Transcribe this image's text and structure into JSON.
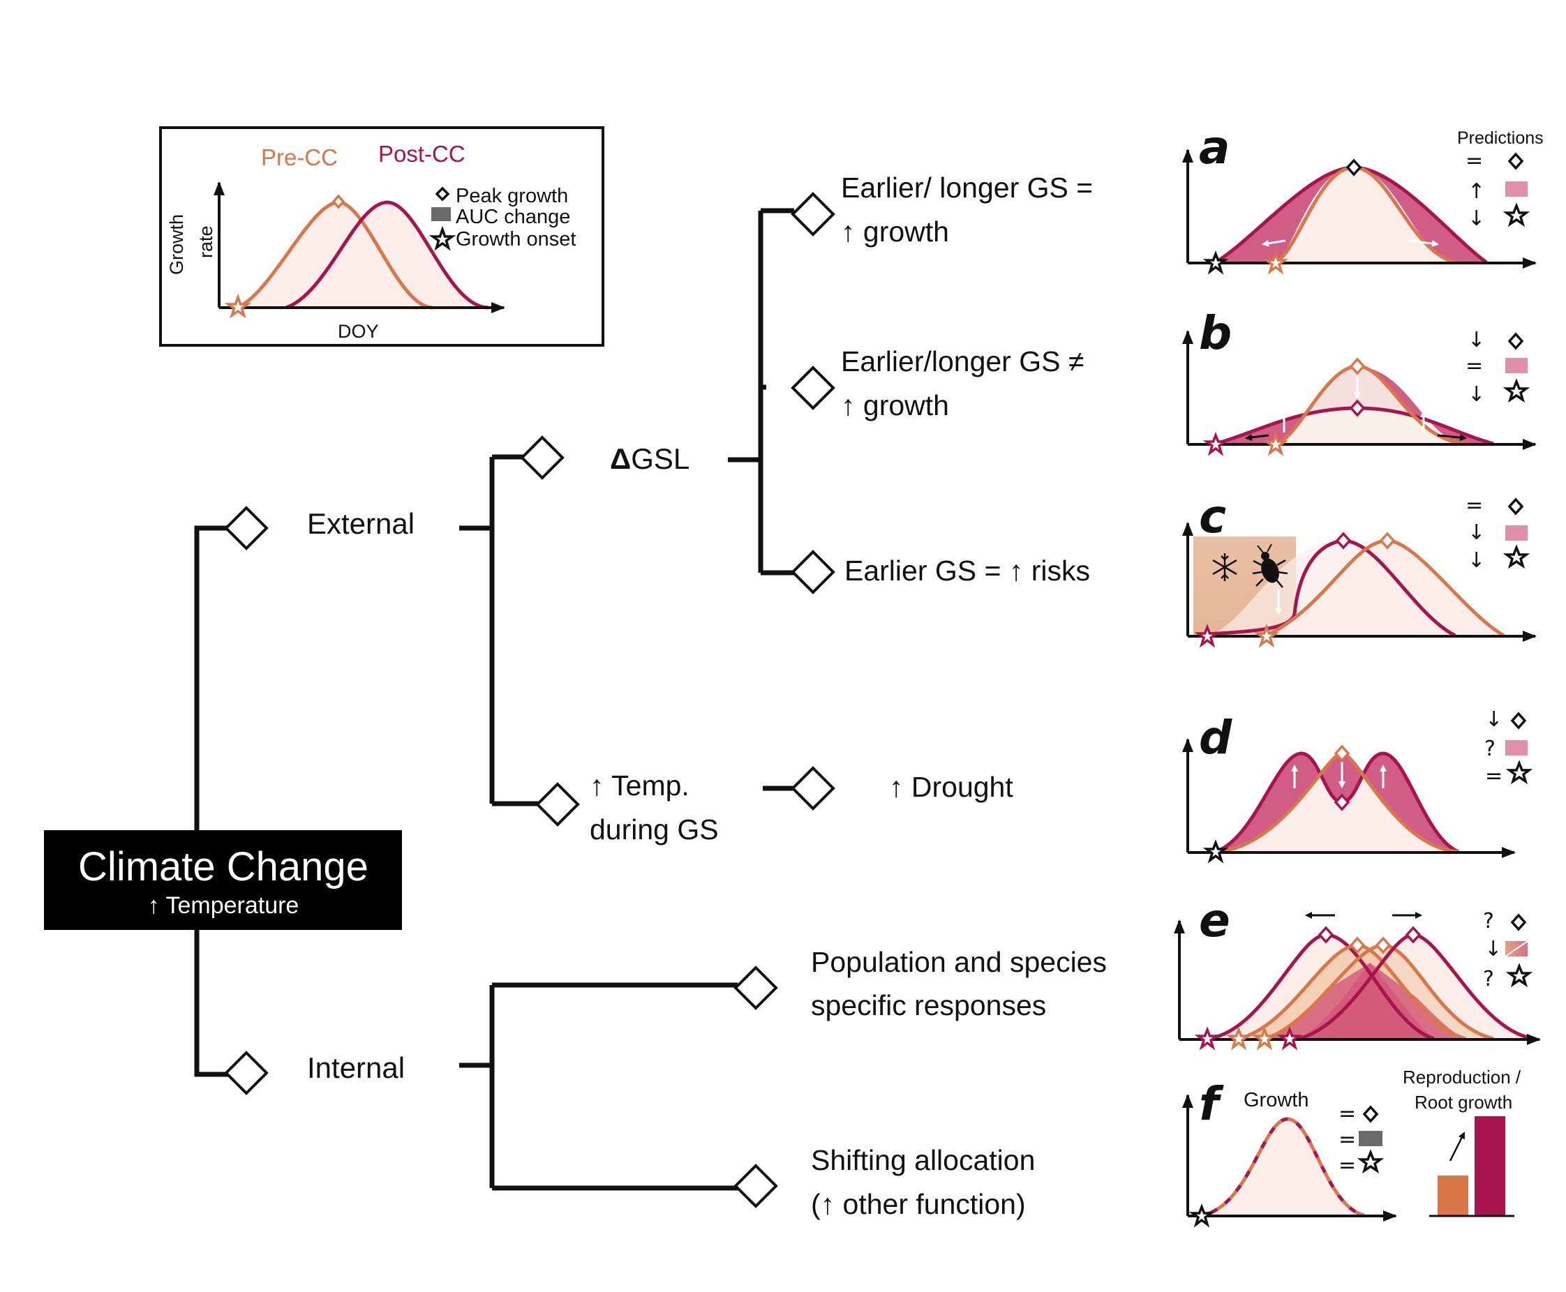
{
  "legend": {
    "pre_label": "Pre-CC",
    "post_label": "Post-CC",
    "y_label_1": "Growth",
    "y_label_2": "rate",
    "x_label": "DOY",
    "items": [
      "Peak growth",
      "AUC change",
      "Growth onset"
    ]
  },
  "root": {
    "title": "Climate Change",
    "subtitle": "↑ Temperature"
  },
  "branches": {
    "external": "External",
    "internal": "Internal",
    "dgsl_delta": "Δ",
    "dgsl": "GSL",
    "temp_line1": "↑ Temp.",
    "temp_line2": "during GS",
    "outcome_a_line1": "Earlier/ longer GS =",
    "outcome_a_line2": "↑ growth",
    "outcome_b_line1": "Earlier/longer GS  ≠",
    "outcome_b_line2": "↑ growth",
    "outcome_c": "Earlier GS = ↑ risks",
    "outcome_d": "↑ Drought",
    "outcome_e_line1": "Population and species",
    "outcome_e_line2": "specific responses",
    "outcome_f_line1": "Shifting allocation",
    "outcome_f_line2": "(↑ other function)"
  },
  "predictions_title": "Predictions",
  "panels": [
    {
      "letter": "a",
      "peak": "=",
      "auc": "↑",
      "onset": "↓"
    },
    {
      "letter": "b",
      "peak": "↓",
      "auc": "=",
      "onset": "↓"
    },
    {
      "letter": "c",
      "peak": "=",
      "auc": "↓",
      "onset": "↓"
    },
    {
      "letter": "d",
      "peak": "↓",
      "auc": "?",
      "onset": "="
    },
    {
      "letter": "e",
      "peak": "?",
      "auc": "↓",
      "onset": "?"
    },
    {
      "letter": "f",
      "peak": "=",
      "auc": "=",
      "onset": "=",
      "growth_label": "Growth",
      "bar_label_1": "Reproduction /",
      "bar_label_2": "Root growth"
    }
  ],
  "colors": {
    "pre_cc": "#d9764a",
    "post_cc": "#a8144e",
    "auc_fill": "#cf5d86",
    "pre_fill": "#fbeeea",
    "risk_box": "#e8c0a6"
  }
}
